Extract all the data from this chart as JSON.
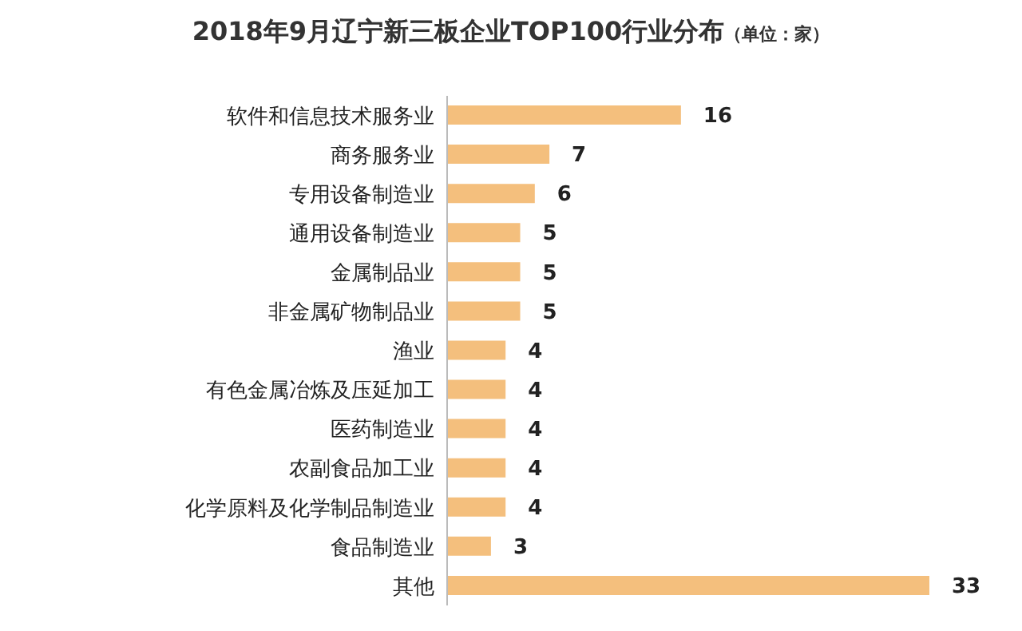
{
  "chart_data": {
    "type": "bar",
    "orientation": "horizontal",
    "title": "2018年9月辽宁新三板企业TOP100行业分布",
    "subtitle": "（单位：家）",
    "categories": [
      "软件和信息技术服务业",
      "商务服务业",
      "专用设备制造业",
      "通用设备制造业",
      "金属制品业",
      "非金属矿物制品业",
      "渔业",
      "有色金属冶炼及压延加工",
      "医药制造业",
      "农副食品加工业",
      "化学原料及化学制品制造业",
      "食品制造业",
      "其他"
    ],
    "values": [
      16,
      7,
      6,
      5,
      5,
      5,
      4,
      4,
      4,
      4,
      4,
      3,
      33
    ],
    "color": "#f4bf7d",
    "data_labels": true,
    "grid": false
  }
}
